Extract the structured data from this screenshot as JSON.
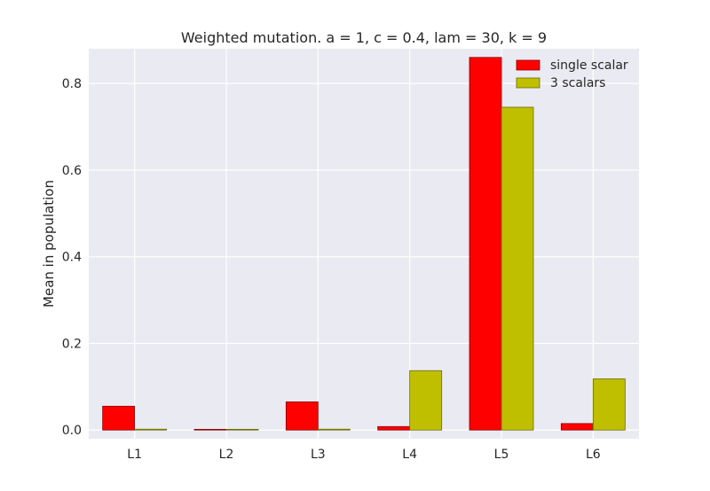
{
  "chart_data": {
    "type": "bar",
    "title": "Weighted mutation. a = 1, c = 0.4, lam = 30, k = 9",
    "xlabel": "",
    "ylabel": "Mean in population",
    "categories": [
      "L1",
      "L2",
      "L3",
      "L4",
      "L5",
      "L6"
    ],
    "ylim": [
      -0.02,
      0.88
    ],
    "yticks": [
      0.0,
      0.2,
      0.4,
      0.6,
      0.8
    ],
    "ytick_labels": [
      "0.0",
      "0.2",
      "0.4",
      "0.6",
      "0.8"
    ],
    "grid": true,
    "legend_position": "top-right",
    "series": [
      {
        "name": "single scalar",
        "color": "#ff0000",
        "edge_color": "#8b0000",
        "values": [
          0.055,
          0.0,
          0.065,
          0.008,
          0.86,
          0.015
        ]
      },
      {
        "name": "3 scalars",
        "color": "#bfbf00",
        "edge_color": "#6b6b00",
        "values": [
          0.002,
          0.0,
          0.002,
          0.137,
          0.745,
          0.118
        ]
      }
    ],
    "background_color": "#eaeaf2"
  }
}
